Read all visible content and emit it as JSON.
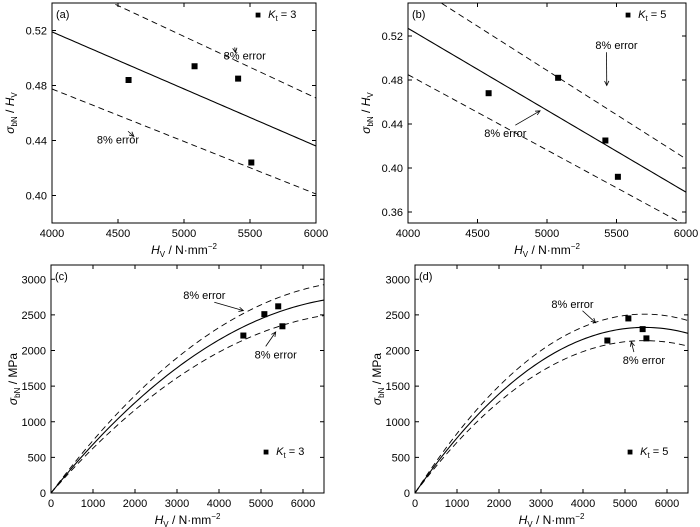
{
  "chart_data": [
    {
      "panel": "(a)",
      "type": "scatter",
      "legend": {
        "symbol": "■",
        "var": "K",
        "sub": "t",
        "rest": " = 3"
      },
      "xlim": [
        4000,
        6000
      ],
      "ylim": [
        0.38,
        0.54
      ],
      "xticks": [
        "4000",
        "4500",
        "5000",
        "5500",
        "6000"
      ],
      "yticks": [
        "0.40",
        "0.44",
        "0.48",
        "0.52"
      ],
      "xlabel": {
        "v": "H",
        "s": "V",
        "rest": " / N·mm",
        "sup": "−2"
      },
      "ylabel": {
        "v1": "σ",
        "s1": "bN",
        "mid": " / ",
        "v2": "H",
        "s2": "V"
      },
      "points": [
        [
          4580,
          0.484
        ],
        [
          5080,
          0.494
        ],
        [
          5410,
          0.485
        ],
        [
          5510,
          0.424
        ]
      ],
      "fit": {
        "kind": "linear",
        "x0": 4000,
        "y0": 0.519,
        "x1": 6000,
        "y1": 0.436
      },
      "band": 0.08,
      "annotations": [
        {
          "text": "8% error",
          "tx": 5460,
          "ty": 0.499,
          "ax": 5390,
          "ay": 0.504
        },
        {
          "text": "8% error",
          "tx": 4500,
          "ty": 0.438,
          "ax": 4620,
          "ay": 0.443
        }
      ]
    },
    {
      "panel": "(b)",
      "type": "scatter",
      "legend": {
        "symbol": "■",
        "var": "K",
        "sub": "t",
        "rest": " = 5"
      },
      "xlim": [
        4000,
        6000
      ],
      "ylim": [
        0.35,
        0.55
      ],
      "xticks": [
        "4000",
        "4500",
        "5000",
        "5500",
        "6000"
      ],
      "yticks": [
        "0.36",
        "0.40",
        "0.44",
        "0.48",
        "0.52"
      ],
      "xlabel": {
        "v": "H",
        "s": "V",
        "rest": " / N·mm",
        "sup": "−2"
      },
      "ylabel": {
        "v1": "σ",
        "s1": "bN",
        "mid": " / ",
        "v2": "H",
        "s2": "V"
      },
      "points": [
        [
          4580,
          0.468
        ],
        [
          5080,
          0.482
        ],
        [
          5420,
          0.425
        ],
        [
          5510,
          0.392
        ]
      ],
      "fit": {
        "kind": "linear",
        "x0": 4000,
        "y0": 0.527,
        "x1": 6000,
        "y1": 0.378
      },
      "band": 0.08,
      "annotations": [
        {
          "text": "8% error",
          "tx": 5500,
          "ty": 0.508,
          "ax": 5430,
          "ay": 0.475
        },
        {
          "text": "8% error",
          "tx": 4700,
          "ty": 0.428,
          "ax": 4950,
          "ay": 0.452
        }
      ]
    },
    {
      "panel": "(c)",
      "type": "scatter",
      "legend": {
        "symbol": "■",
        "var": "K",
        "sub": "t",
        "rest": " = 3"
      },
      "xlim": [
        0,
        6500
      ],
      "ylim": [
        0,
        3200
      ],
      "xticks": [
        "0",
        "1000",
        "2000",
        "3000",
        "4000",
        "5000",
        "6000"
      ],
      "yticks": [
        "0",
        "500",
        "1000",
        "1500",
        "2000",
        "2500",
        "3000"
      ],
      "xlabel": {
        "v": "H",
        "s": "V",
        "rest": " / N·mm",
        "sup": "−2"
      },
      "ylabel": {
        "v1": "σ",
        "s1": "bN",
        "mid": " / MPa",
        "v2": "",
        "s2": ""
      },
      "points": [
        [
          4580,
          2210
        ],
        [
          5080,
          2510
        ],
        [
          5410,
          2620
        ],
        [
          5510,
          2340
        ]
      ],
      "fit": {
        "kind": "quadratic",
        "a": 0.7305,
        "b": -4.83e-05
      },
      "band": 0.08,
      "annotations": [
        {
          "text": "8% error",
          "tx": 3650,
          "ty": 2720,
          "ax": 4580,
          "ay": 2560
        },
        {
          "text": "8% error",
          "tx": 5350,
          "ty": 1890,
          "ax": 5350,
          "ay": 2260
        }
      ]
    },
    {
      "panel": "(d)",
      "type": "scatter",
      "legend": {
        "symbol": "■",
        "var": "K",
        "sub": "t",
        "rest": " = 5"
      },
      "xlim": [
        0,
        6500
      ],
      "ylim": [
        0,
        3200
      ],
      "xticks": [
        "0",
        "1000",
        "2000",
        "3000",
        "4000",
        "5000",
        "6000"
      ],
      "yticks": [
        "0",
        "500",
        "1000",
        "1500",
        "2000",
        "2500",
        "3000"
      ],
      "xlabel": {
        "v": "H",
        "s": "V",
        "rest": " / N·mm",
        "sup": "−2"
      },
      "ylabel": {
        "v1": "σ",
        "s1": "bN",
        "mid": " / MPa",
        "v2": "",
        "s2": ""
      },
      "points": [
        [
          4580,
          2140
        ],
        [
          5080,
          2450
        ],
        [
          5420,
          2300
        ],
        [
          5510,
          2170
        ]
      ],
      "fit": {
        "kind": "quadratic",
        "a": 0.8505,
        "b": -7.78e-05
      },
      "band": 0.08,
      "annotations": [
        {
          "text": "8% error",
          "tx": 3750,
          "ty": 2600,
          "ax": 4300,
          "ay": 2390
        },
        {
          "text": "8% error",
          "tx": 5450,
          "ty": 1810,
          "ax": 5150,
          "ay": 2120
        }
      ]
    }
  ]
}
